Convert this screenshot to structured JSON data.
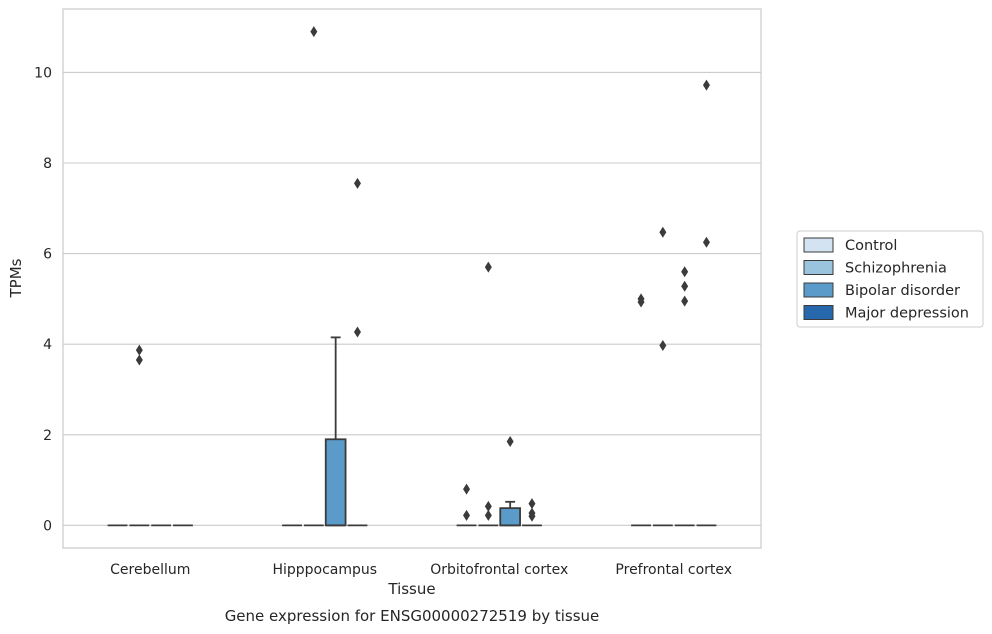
{
  "chart_data": {
    "type": "box",
    "title": "",
    "caption": "Gene expression for ENSG00000272519 by tissue",
    "xlabel": "Tissue",
    "ylabel": "TPMs",
    "ylim": [
      -0.5,
      11.4
    ],
    "yticks": [
      0,
      2,
      4,
      6,
      8,
      10
    ],
    "grid": "horizontal",
    "legend_position": "right",
    "categories": [
      "Cerebellum",
      "Hipppocampus",
      "Orbitofrontal cortex",
      "Prefrontal cortex"
    ],
    "series": [
      {
        "name": "Control",
        "color": "#d3e3f1",
        "boxes": [
          {
            "category": "Cerebellum",
            "q1": 0,
            "median": 0,
            "q3": 0,
            "whisker_low": 0,
            "whisker_high": 0,
            "outliers": []
          },
          {
            "category": "Hipppocampus",
            "q1": 0,
            "median": 0,
            "q3": 0,
            "whisker_low": 0,
            "whisker_high": 0,
            "outliers": []
          },
          {
            "category": "Orbitofrontal cortex",
            "q1": 0,
            "median": 0,
            "q3": 0,
            "whisker_low": 0,
            "whisker_high": 0,
            "outliers": [
              0.8,
              0.22
            ]
          },
          {
            "category": "Prefrontal cortex",
            "q1": 0,
            "median": 0,
            "q3": 0,
            "whisker_low": 0,
            "whisker_high": 0,
            "outliers": [
              5.0,
              4.93
            ]
          }
        ]
      },
      {
        "name": "Schizophrenia",
        "color": "#9ac3de",
        "boxes": [
          {
            "category": "Cerebellum",
            "q1": 0,
            "median": 0,
            "q3": 0,
            "whisker_low": 0,
            "whisker_high": 0,
            "outliers": [
              3.87,
              3.65
            ]
          },
          {
            "category": "Hipppocampus",
            "q1": 0,
            "median": 0,
            "q3": 0,
            "whisker_low": 0,
            "whisker_high": 0,
            "outliers": [
              10.9
            ]
          },
          {
            "category": "Orbitofrontal cortex",
            "q1": 0,
            "median": 0,
            "q3": 0,
            "whisker_low": 0,
            "whisker_high": 0,
            "outliers": [
              5.7,
              0.42,
              0.22
            ]
          },
          {
            "category": "Prefrontal cortex",
            "q1": 0,
            "median": 0,
            "q3": 0,
            "whisker_low": 0,
            "whisker_high": 0,
            "outliers": [
              6.47,
              3.97
            ]
          }
        ]
      },
      {
        "name": "Bipolar disorder",
        "color": "#5a9bc9",
        "boxes": [
          {
            "category": "Cerebellum",
            "q1": 0,
            "median": 0,
            "q3": 0,
            "whisker_low": 0,
            "whisker_high": 0,
            "outliers": []
          },
          {
            "category": "Hipppocampus",
            "q1": 0,
            "median": 0,
            "q3": 1.9,
            "whisker_low": 0,
            "whisker_high": 4.15,
            "outliers": []
          },
          {
            "category": "Orbitofrontal cortex",
            "q1": 0,
            "median": 0,
            "q3": 0.38,
            "whisker_low": 0,
            "whisker_high": 0.52,
            "outliers": [
              1.85
            ]
          },
          {
            "category": "Prefrontal cortex",
            "q1": 0,
            "median": 0,
            "q3": 0,
            "whisker_low": 0,
            "whisker_high": 0,
            "outliers": [
              5.6,
              5.28,
              4.95
            ]
          }
        ]
      },
      {
        "name": "Major depression",
        "color": "#2767ac",
        "boxes": [
          {
            "category": "Cerebellum",
            "q1": 0,
            "median": 0,
            "q3": 0,
            "whisker_low": 0,
            "whisker_high": 0,
            "outliers": []
          },
          {
            "category": "Hipppocampus",
            "q1": 0,
            "median": 0,
            "q3": 0,
            "whisker_low": 0,
            "whisker_high": 0,
            "outliers": [
              7.55,
              4.27
            ]
          },
          {
            "category": "Orbitofrontal cortex",
            "q1": 0,
            "median": 0,
            "q3": 0,
            "whisker_low": 0,
            "whisker_high": 0,
            "outliers": [
              0.48,
              0.27,
              0.2
            ]
          },
          {
            "category": "Prefrontal cortex",
            "q1": 0,
            "median": 0,
            "q3": 0,
            "whisker_low": 0,
            "whisker_high": 0,
            "outliers": [
              9.72,
              6.25
            ]
          }
        ]
      }
    ]
  }
}
